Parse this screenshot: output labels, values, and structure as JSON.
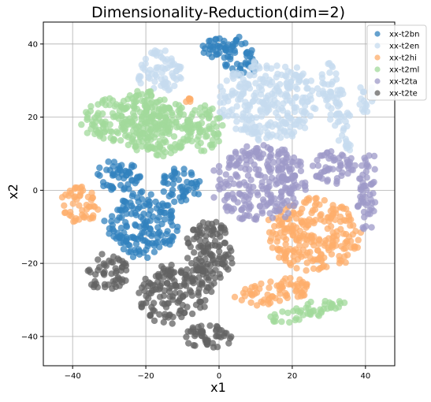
{
  "chart_data": {
    "type": "scatter",
    "title": "Dimensionality-Reduction(dim=2)",
    "xlabel": "x1",
    "ylabel": "x2",
    "xlim": [
      -48,
      48
    ],
    "ylim": [
      -48,
      46
    ],
    "xticks": [
      -40,
      -20,
      0,
      20,
      40
    ],
    "yticks": [
      -40,
      -20,
      0,
      20,
      40
    ],
    "xtick_labels": [
      "−40",
      "−20",
      "0",
      "20",
      "40"
    ],
    "ytick_labels": [
      "−40",
      "−20",
      "0",
      "20",
      "40"
    ],
    "grid": true,
    "legend_position": "top-right",
    "series": [
      {
        "name": "xx-t2bn",
        "color": "#3182bd",
        "clusters": [
          {
            "cx": 5.5,
            "cy": 36,
            "rx": 5,
            "ry": 5.5,
            "rot": 35
          },
          {
            "cx": 0,
            "cy": 39.5,
            "rx": 7,
            "ry": 2.5,
            "rot": 25
          },
          {
            "cx": -27.5,
            "cy": 4,
            "rx": 6.5,
            "ry": 4.5,
            "rot": 0
          },
          {
            "cx": -10.5,
            "cy": 1.5,
            "rx": 5.5,
            "ry": 5,
            "rot": 0
          },
          {
            "cx": -21,
            "cy": -9.5,
            "rx": 10,
            "ry": 9,
            "rot": 0
          }
        ]
      },
      {
        "name": "xx-t2en",
        "color": "#c6dbef",
        "clusters": [
          {
            "cx": -16,
            "cy": 32.5,
            "rx": 6.5,
            "ry": 6,
            "rot": 0
          },
          {
            "cx": 13.5,
            "cy": 24.5,
            "rx": 14,
            "ry": 11,
            "rot": 0
          },
          {
            "cx": 32,
            "cy": 23.5,
            "rx": 3,
            "ry": 13,
            "rot": 15
          },
          {
            "cx": 40,
            "cy": 25,
            "rx": 2.5,
            "ry": 4,
            "rot": 0
          }
        ]
      },
      {
        "name": "xx-t2hi",
        "color": "#fdae6b",
        "clusters": [
          {
            "cx": -38,
            "cy": -4,
            "rx": 5.5,
            "ry": 5,
            "rot": 0
          },
          {
            "cx": 26,
            "cy": -12,
            "rx": 13,
            "ry": 10,
            "rot": -5
          },
          {
            "cx": 15,
            "cy": -28,
            "rx": 11,
            "ry": 3.5,
            "rot": 10
          },
          {
            "cx": -8.5,
            "cy": 24.5,
            "rx": 0.8,
            "ry": 0.8,
            "rot": 0
          }
        ]
      },
      {
        "name": "xx-t2ml",
        "color": "#a1d99b",
        "clusters": [
          {
            "cx": -31,
            "cy": 19,
            "rx": 6.5,
            "ry": 6,
            "rot": 0
          },
          {
            "cx": -20.5,
            "cy": 19.5,
            "rx": 8,
            "ry": 9,
            "rot": 0
          },
          {
            "cx": -15,
            "cy": 17,
            "rx": 8,
            "ry": 8,
            "rot": 0
          },
          {
            "cx": -4,
            "cy": 16.5,
            "rx": 5.5,
            "ry": 6.5,
            "rot": 0
          },
          {
            "cx": 24,
            "cy": -33,
            "rx": 11,
            "ry": 2.5,
            "rot": 12
          }
        ]
      },
      {
        "name": "xx-t2ta",
        "color": "#9e9ac8",
        "clusters": [
          {
            "cx": 11,
            "cy": 2,
            "rx": 13,
            "ry": 11,
            "rot": 0
          },
          {
            "cx": 31.5,
            "cy": 6,
            "rx": 6,
            "ry": 5,
            "rot": 0
          },
          {
            "cx": 40.5,
            "cy": -1,
            "rx": 2.5,
            "ry": 12,
            "rot": -3
          }
        ]
      },
      {
        "name": "xx-t2te",
        "color": "#636363",
        "clusters": [
          {
            "cx": -30.5,
            "cy": -22.5,
            "rx": 6,
            "ry": 5,
            "rot": 0
          },
          {
            "cx": -3,
            "cy": -17,
            "rx": 7,
            "ry": 9,
            "rot": 0
          },
          {
            "cx": -12,
            "cy": -28,
            "rx": 11,
            "ry": 8,
            "rot": 25
          },
          {
            "cx": -2,
            "cy": -40,
            "rx": 8,
            "ry": 3.5,
            "rot": 0
          }
        ]
      }
    ]
  }
}
